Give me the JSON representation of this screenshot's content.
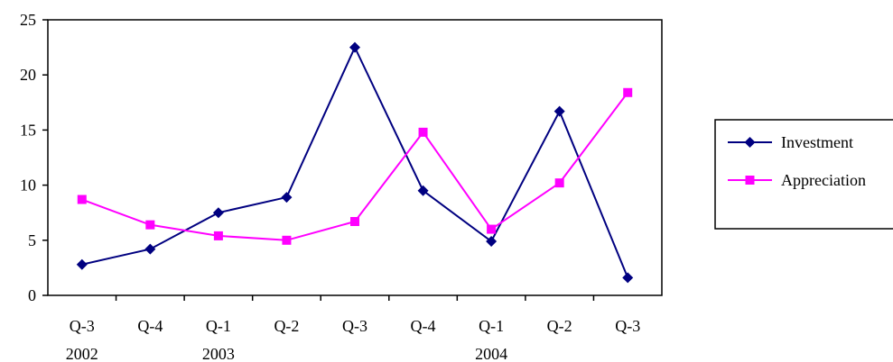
{
  "chart_data": {
    "type": "line",
    "categories": [
      "Q-3",
      "Q-4",
      "Q-1",
      "Q-2",
      "Q-3",
      "Q-4",
      "Q-1",
      "Q-2",
      "Q-3"
    ],
    "year_labels": [
      {
        "index": 0,
        "label": "2002"
      },
      {
        "index": 2,
        "label": "2003"
      },
      {
        "index": 6,
        "label": "2004"
      }
    ],
    "series": [
      {
        "name": "Investment",
        "values": [
          2.8,
          4.2,
          7.5,
          8.9,
          22.5,
          9.5,
          4.9,
          16.7,
          1.6
        ],
        "color": "#000080",
        "marker": "diamond"
      },
      {
        "name": "Appreciation",
        "values": [
          8.7,
          6.4,
          5.4,
          5.0,
          6.7,
          14.8,
          6.0,
          10.2,
          18.4
        ],
        "color": "#ff00ff",
        "marker": "square"
      }
    ],
    "y_ticks": [
      0,
      5,
      10,
      15,
      20,
      25
    ],
    "ylim": [
      0,
      25
    ],
    "title": "",
    "xlabel": "",
    "ylabel": "",
    "grid": false,
    "legend_position": "right"
  }
}
